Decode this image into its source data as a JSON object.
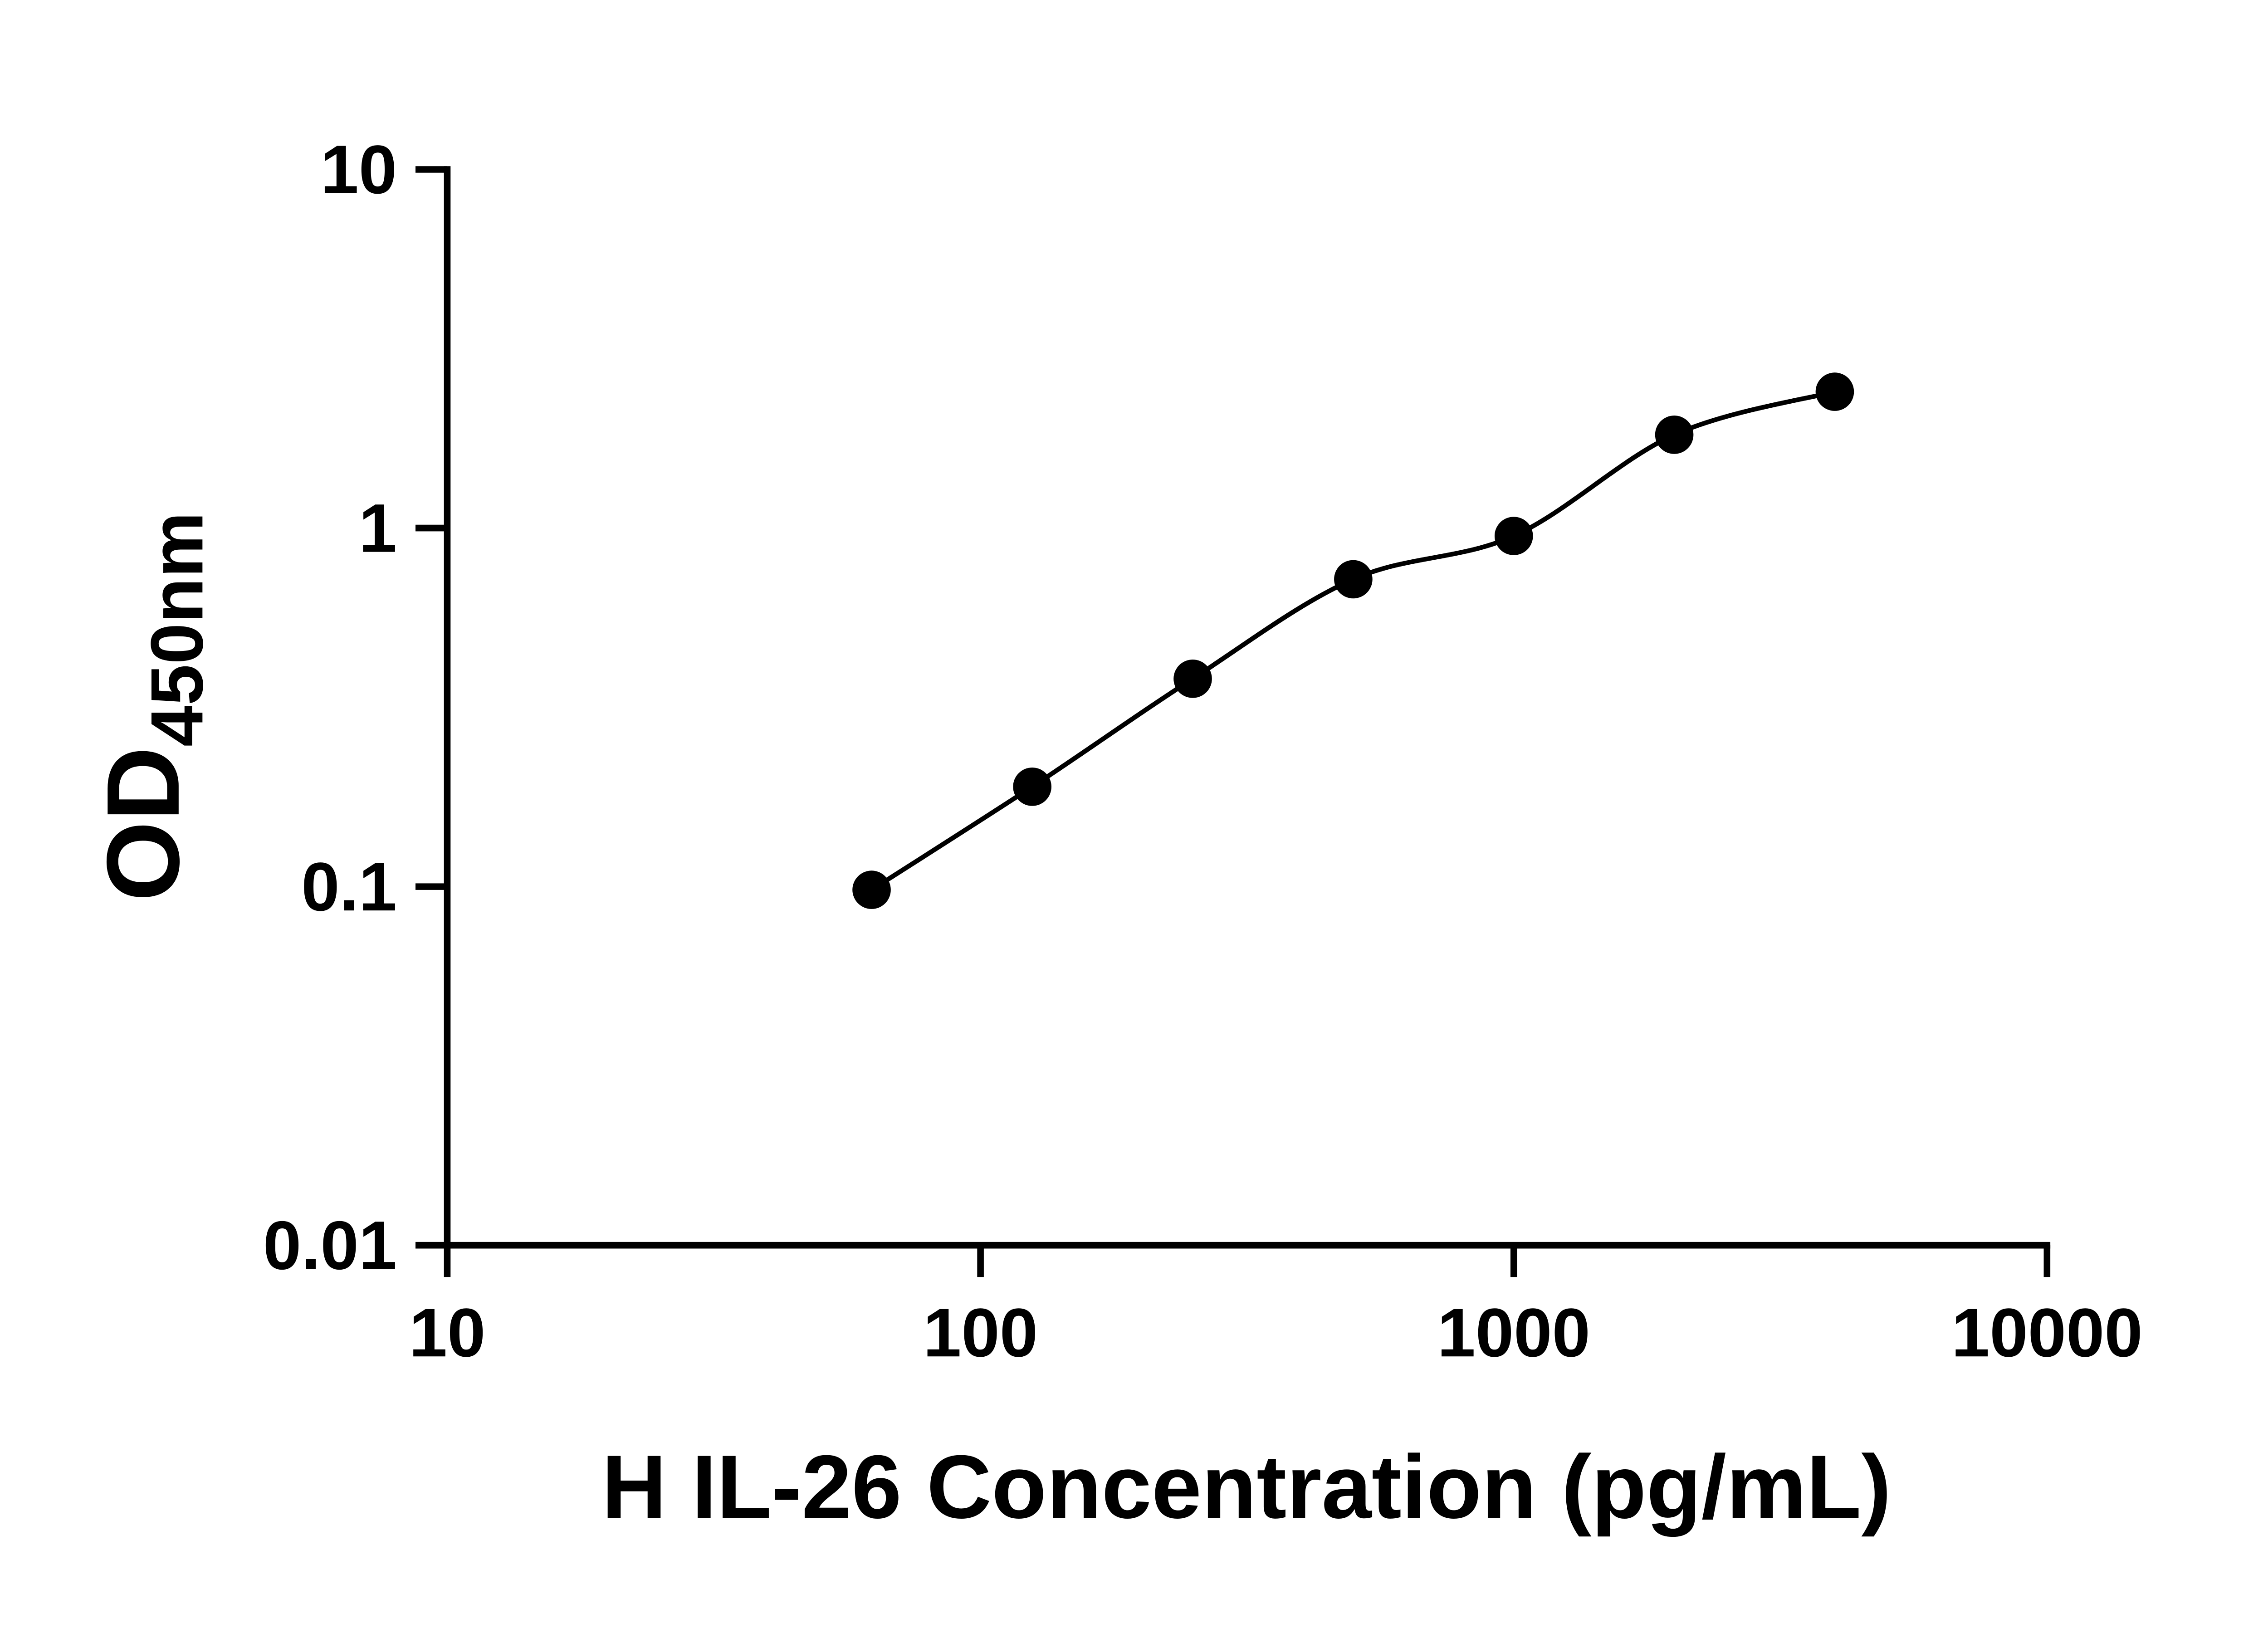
{
  "chart_data": {
    "type": "scatter",
    "title": "",
    "xlabel": "H IL-26 Concentration (pg/mL)",
    "ylabel": "OD",
    "ylabel_subscript": "450nm",
    "x_scale": "log",
    "y_scale": "log",
    "xlim": [
      10,
      10000
    ],
    "ylim": [
      0.01,
      10
    ],
    "x_ticks": [
      10,
      100,
      1000,
      10000
    ],
    "x_tick_labels": [
      "10",
      "100",
      "1000",
      "10000"
    ],
    "y_ticks": [
      0.01,
      0.1,
      1,
      10
    ],
    "y_tick_labels": [
      "0.01",
      "0.1",
      "1",
      "10"
    ],
    "grid": false,
    "legend": "none",
    "background": "#ffffff",
    "series": [
      {
        "x": [
          62.5,
          125,
          250,
          500,
          1000,
          2000,
          4000
        ],
        "y": [
          0.098,
          0.19,
          0.38,
          0.72,
          0.95,
          1.82,
          2.4
        ],
        "marker": "filled-circle",
        "color": "#000000",
        "curve": "smooth"
      }
    ]
  }
}
